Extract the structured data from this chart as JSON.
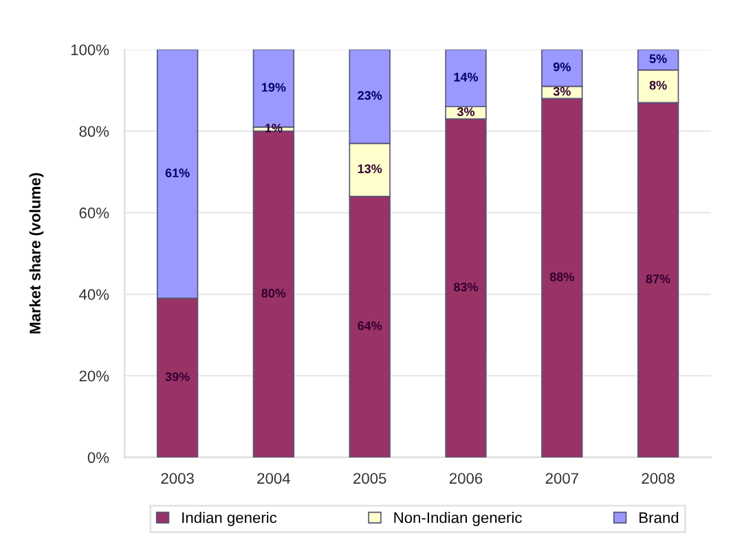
{
  "chart_data": {
    "type": "bar",
    "stacked": true,
    "ylabel": "Market share (volume)",
    "categories": [
      "2003",
      "2004",
      "2005",
      "2006",
      "2007",
      "2008"
    ],
    "series": [
      {
        "name": "Indian generic",
        "color": "#993366",
        "values": [
          39,
          80,
          64,
          83,
          88,
          87
        ],
        "value_labels": [
          "39%",
          "80%",
          "64%",
          "83%",
          "88%",
          "87%"
        ]
      },
      {
        "name": "Non-Indian generic",
        "color": "#ffffcc",
        "values": [
          0,
          1,
          13,
          3,
          3,
          8
        ],
        "value_labels": [
          null,
          "1%",
          "13%",
          "3%",
          "3%",
          "8%"
        ]
      },
      {
        "name": "Brand",
        "color": "#9999ff",
        "values": [
          61,
          19,
          23,
          14,
          9,
          5
        ],
        "value_labels": [
          "61%",
          "19%",
          "23%",
          "14%",
          "9%",
          "5%"
        ]
      }
    ],
    "ylim": [
      0,
      100
    ],
    "yticks": [
      {
        "value": 0,
        "label": "0%"
      },
      {
        "value": 20,
        "label": "20%"
      },
      {
        "value": 40,
        "label": "40%"
      },
      {
        "value": 60,
        "label": "60%"
      },
      {
        "value": 80,
        "label": "80%"
      },
      {
        "value": 100,
        "label": "100%"
      }
    ],
    "grid": "y",
    "legend": "bottom"
  }
}
